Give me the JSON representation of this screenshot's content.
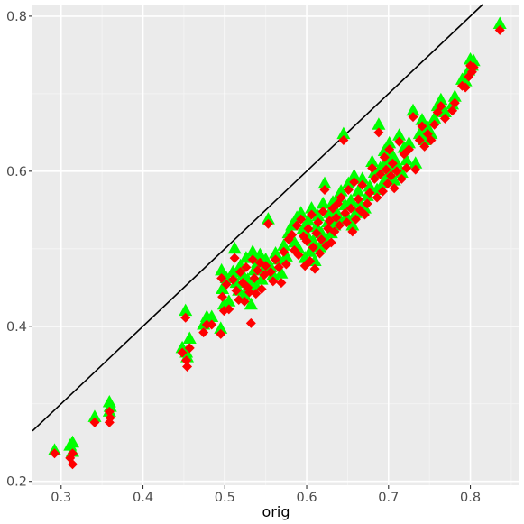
{
  "chart_data": {
    "type": "scatter",
    "xlabel": "orig",
    "ylabel": "",
    "xlim": [
      0.265,
      0.86
    ],
    "ylim": [
      0.195,
      0.815
    ],
    "x_ticks": [
      0.3,
      0.4,
      0.5,
      0.6,
      0.7,
      0.8
    ],
    "y_ticks": [
      0.2,
      0.4,
      0.6,
      0.8
    ],
    "x_tick_labels": [
      "0.3",
      "0.4",
      "0.5",
      "0.6",
      "0.7",
      "0.8"
    ],
    "y_tick_labels": [
      "0.2",
      "0.4",
      "0.6",
      "0.8"
    ],
    "grid": true,
    "reference_line": {
      "type": "identity",
      "slope": 1,
      "intercept": 0,
      "color": "#000000"
    },
    "series": [
      {
        "marker": "triangle",
        "color": "#00ff00"
      },
      {
        "marker": "diamond",
        "color": "#ff0000"
      }
    ],
    "points": [
      [
        0.292,
        0.24,
        0.236
      ],
      [
        0.311,
        0.246,
        0.23
      ],
      [
        0.314,
        0.25,
        0.236
      ],
      [
        0.314,
        0.238,
        0.222
      ],
      [
        0.341,
        0.283,
        0.276
      ],
      [
        0.359,
        0.302,
        0.29
      ],
      [
        0.359,
        0.29,
        0.276
      ],
      [
        0.36,
        0.296,
        0.282
      ],
      [
        0.448,
        0.372,
        0.366
      ],
      [
        0.452,
        0.42,
        0.411
      ],
      [
        0.453,
        0.366,
        0.356
      ],
      [
        0.454,
        0.36,
        0.348
      ],
      [
        0.457,
        0.384,
        0.372
      ],
      [
        0.474,
        0.402,
        0.392
      ],
      [
        0.478,
        0.412,
        0.402
      ],
      [
        0.484,
        0.412,
        0.402
      ],
      [
        0.495,
        0.397,
        0.39
      ],
      [
        0.496,
        0.472,
        0.462
      ],
      [
        0.497,
        0.448,
        0.438
      ],
      [
        0.499,
        0.428,
        0.42
      ],
      [
        0.502,
        0.462,
        0.454
      ],
      [
        0.505,
        0.432,
        0.422
      ],
      [
        0.51,
        0.47,
        0.46
      ],
      [
        0.512,
        0.5,
        0.488
      ],
      [
        0.514,
        0.456,
        0.446
      ],
      [
        0.517,
        0.446,
        0.434
      ],
      [
        0.519,
        0.478,
        0.47
      ],
      [
        0.522,
        0.466,
        0.456
      ],
      [
        0.524,
        0.44,
        0.432
      ],
      [
        0.526,
        0.488,
        0.476
      ],
      [
        0.528,
        0.46,
        0.45
      ],
      [
        0.53,
        0.454,
        0.444
      ],
      [
        0.532,
        0.428,
        0.404
      ],
      [
        0.534,
        0.496,
        0.486
      ],
      [
        0.536,
        0.472,
        0.462
      ],
      [
        0.538,
        0.452,
        0.442
      ],
      [
        0.54,
        0.482,
        0.472
      ],
      [
        0.543,
        0.492,
        0.482
      ],
      [
        0.545,
        0.46,
        0.448
      ],
      [
        0.548,
        0.474,
        0.466
      ],
      [
        0.55,
        0.486,
        0.478
      ],
      [
        0.553,
        0.538,
        0.532
      ],
      [
        0.556,
        0.476,
        0.47
      ],
      [
        0.559,
        0.466,
        0.458
      ],
      [
        0.562,
        0.494,
        0.486
      ],
      [
        0.566,
        0.486,
        0.476
      ],
      [
        0.569,
        0.468,
        0.456
      ],
      [
        0.572,
        0.504,
        0.496
      ],
      [
        0.575,
        0.49,
        0.48
      ],
      [
        0.578,
        0.52,
        0.512
      ],
      [
        0.582,
        0.53,
        0.518
      ],
      [
        0.585,
        0.508,
        0.498
      ],
      [
        0.588,
        0.54,
        0.53
      ],
      [
        0.59,
        0.5,
        0.492
      ],
      [
        0.593,
        0.546,
        0.538
      ],
      [
        0.596,
        0.526,
        0.516
      ],
      [
        0.598,
        0.488,
        0.478
      ],
      [
        0.6,
        0.518,
        0.51
      ],
      [
        0.602,
        0.536,
        0.526
      ],
      [
        0.604,
        0.496,
        0.484
      ],
      [
        0.606,
        0.552,
        0.544
      ],
      [
        0.608,
        0.51,
        0.502
      ],
      [
        0.61,
        0.484,
        0.474
      ],
      [
        0.612,
        0.528,
        0.52
      ],
      [
        0.614,
        0.542,
        0.534
      ],
      [
        0.616,
        0.502,
        0.494
      ],
      [
        0.618,
        0.52,
        0.512
      ],
      [
        0.62,
        0.558,
        0.548
      ],
      [
        0.622,
        0.584,
        0.576
      ],
      [
        0.624,
        0.512,
        0.504
      ],
      [
        0.626,
        0.534,
        0.526
      ],
      [
        0.628,
        0.546,
        0.536
      ],
      [
        0.63,
        0.52,
        0.508
      ],
      [
        0.632,
        0.56,
        0.552
      ],
      [
        0.634,
        0.53,
        0.522
      ],
      [
        0.636,
        0.548,
        0.54
      ],
      [
        0.638,
        0.566,
        0.558
      ],
      [
        0.64,
        0.538,
        0.53
      ],
      [
        0.642,
        0.574,
        0.566
      ],
      [
        0.645,
        0.648,
        0.64
      ],
      [
        0.647,
        0.556,
        0.546
      ],
      [
        0.649,
        0.542,
        0.534
      ],
      [
        0.651,
        0.584,
        0.576
      ],
      [
        0.654,
        0.562,
        0.552
      ],
      [
        0.656,
        0.53,
        0.522
      ],
      [
        0.658,
        0.594,
        0.586
      ],
      [
        0.66,
        0.546,
        0.538
      ],
      [
        0.663,
        0.574,
        0.564
      ],
      [
        0.665,
        0.56,
        0.55
      ],
      [
        0.668,
        0.59,
        0.582
      ],
      [
        0.671,
        0.552,
        0.544
      ],
      [
        0.674,
        0.568,
        0.558
      ],
      [
        0.677,
        0.58,
        0.572
      ],
      [
        0.68,
        0.612,
        0.604
      ],
      [
        0.683,
        0.598,
        0.59
      ],
      [
        0.686,
        0.576,
        0.566
      ],
      [
        0.688,
        0.66,
        0.65
      ],
      [
        0.69,
        0.604,
        0.596
      ],
      [
        0.693,
        0.584,
        0.574
      ],
      [
        0.695,
        0.626,
        0.618
      ],
      [
        0.697,
        0.612,
        0.602
      ],
      [
        0.699,
        0.594,
        0.584
      ],
      [
        0.701,
        0.636,
        0.628
      ],
      [
        0.703,
        0.604,
        0.594
      ],
      [
        0.705,
        0.62,
        0.61
      ],
      [
        0.707,
        0.588,
        0.578
      ],
      [
        0.71,
        0.61,
        0.6
      ],
      [
        0.713,
        0.646,
        0.638
      ],
      [
        0.716,
        0.598,
        0.59
      ],
      [
        0.719,
        0.63,
        0.622
      ],
      [
        0.722,
        0.614,
        0.604
      ],
      [
        0.725,
        0.636,
        0.628
      ],
      [
        0.73,
        0.678,
        0.67
      ],
      [
        0.733,
        0.61,
        0.602
      ],
      [
        0.738,
        0.648,
        0.64
      ],
      [
        0.741,
        0.666,
        0.658
      ],
      [
        0.744,
        0.64,
        0.632
      ],
      [
        0.748,
        0.656,
        0.648
      ],
      [
        0.752,
        0.648,
        0.64
      ],
      [
        0.756,
        0.668,
        0.66
      ],
      [
        0.76,
        0.684,
        0.676
      ],
      [
        0.764,
        0.692,
        0.684
      ],
      [
        0.769,
        0.676,
        0.668
      ],
      [
        0.778,
        0.686,
        0.678
      ],
      [
        0.781,
        0.696,
        0.688
      ],
      [
        0.79,
        0.718,
        0.71
      ],
      [
        0.794,
        0.716,
        0.708
      ],
      [
        0.798,
        0.73,
        0.722
      ],
      [
        0.8,
        0.744,
        0.736
      ],
      [
        0.802,
        0.736,
        0.728
      ],
      [
        0.804,
        0.742,
        0.734
      ],
      [
        0.836,
        0.79,
        0.782
      ]
    ]
  }
}
